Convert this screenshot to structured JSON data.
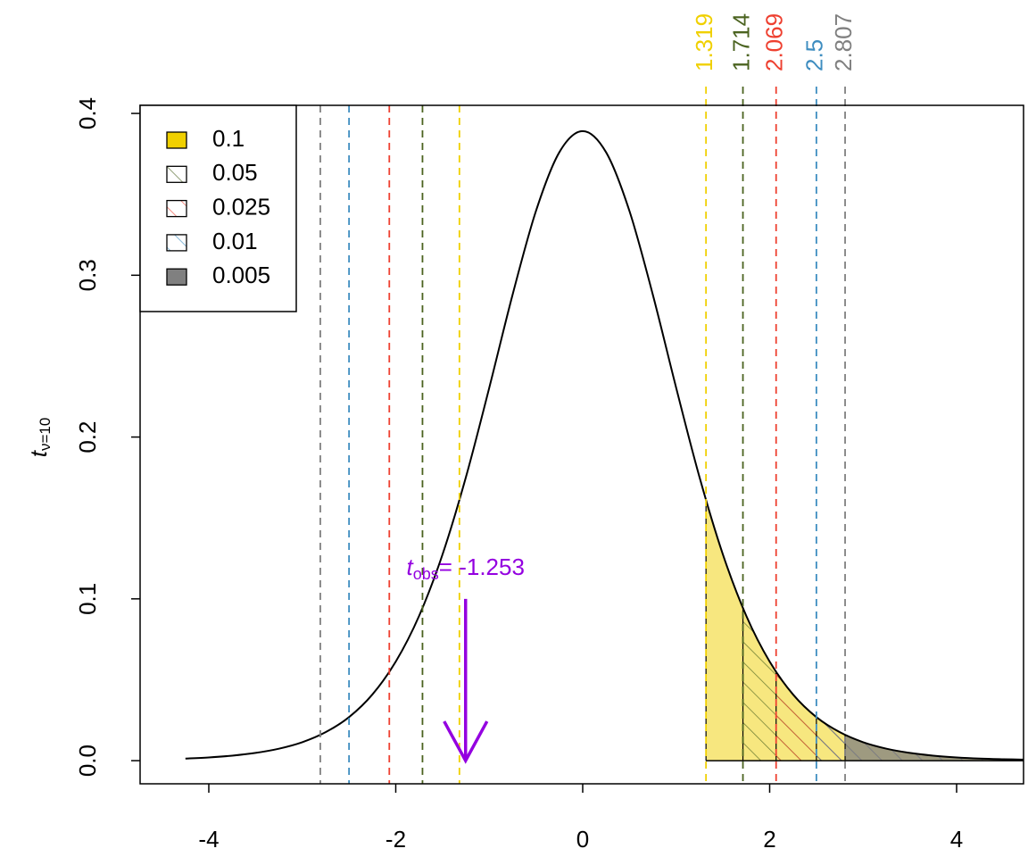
{
  "chart_data": {
    "type": "density",
    "xlim": [
      -4.735,
      4.716
    ],
    "ylim": [
      -0.0143,
      0.405
    ],
    "xticks": [
      -4,
      -2,
      0,
      2,
      4
    ],
    "yticks": [
      {
        "value": 0,
        "label": "0.0"
      },
      0.1,
      0.2,
      0.3,
      0.4
    ],
    "ylabel": "t",
    "ylabel_subscript": "ν=10",
    "curve": {
      "color": "#000000",
      "x": [
        -4.25,
        -4,
        -3.75,
        -3.5,
        -3.25,
        -3,
        -2.75,
        -2.5,
        -2.25,
        -2,
        -1.75,
        -1.5,
        -1.25,
        -1,
        -0.75,
        -0.5,
        -0.25,
        0,
        0.25,
        0.5,
        0.75,
        1,
        1.25,
        1.5,
        1.75,
        2,
        2.25,
        2.5,
        2.75,
        3,
        3.25,
        3.5,
        3.75,
        4,
        4.25,
        4.5,
        4.75
      ],
      "values": [
        0.0013,
        0.002,
        0.0031,
        0.0048,
        0.0074,
        0.0114,
        0.0176,
        0.0269,
        0.0409,
        0.0612,
        0.0895,
        0.1274,
        0.1751,
        0.2304,
        0.288,
        0.3397,
        0.376,
        0.3891,
        0.376,
        0.3397,
        0.288,
        0.2304,
        0.1751,
        0.1274,
        0.0895,
        0.0612,
        0.0409,
        0.0269,
        0.0176,
        0.0114,
        0.0074,
        0.0048,
        0.0031,
        0.002,
        0.0013,
        0.0009,
        0.0006
      ]
    },
    "series": [
      {
        "name": "0.1",
        "value": 1.319,
        "color": "#F0D000",
        "fill": "solid"
      },
      {
        "name": "0.05",
        "value": 1.714,
        "color": "#4B6320",
        "fill": "hatch"
      },
      {
        "name": "0.025",
        "value": 2.069,
        "color": "#EE4030",
        "fill": "hatch"
      },
      {
        "name": "0.01",
        "value": 2.5,
        "color": "#3E8DC0",
        "fill": "hatch"
      },
      {
        "name": "0.005",
        "value": 2.807,
        "color": "#808080",
        "fill": "solid"
      }
    ],
    "observed": {
      "value": -1.253,
      "symbol": "t",
      "subscript": "obs",
      "value_label": "= -1.253",
      "arrow_top": 0.1,
      "color": "#9400E0"
    }
  }
}
